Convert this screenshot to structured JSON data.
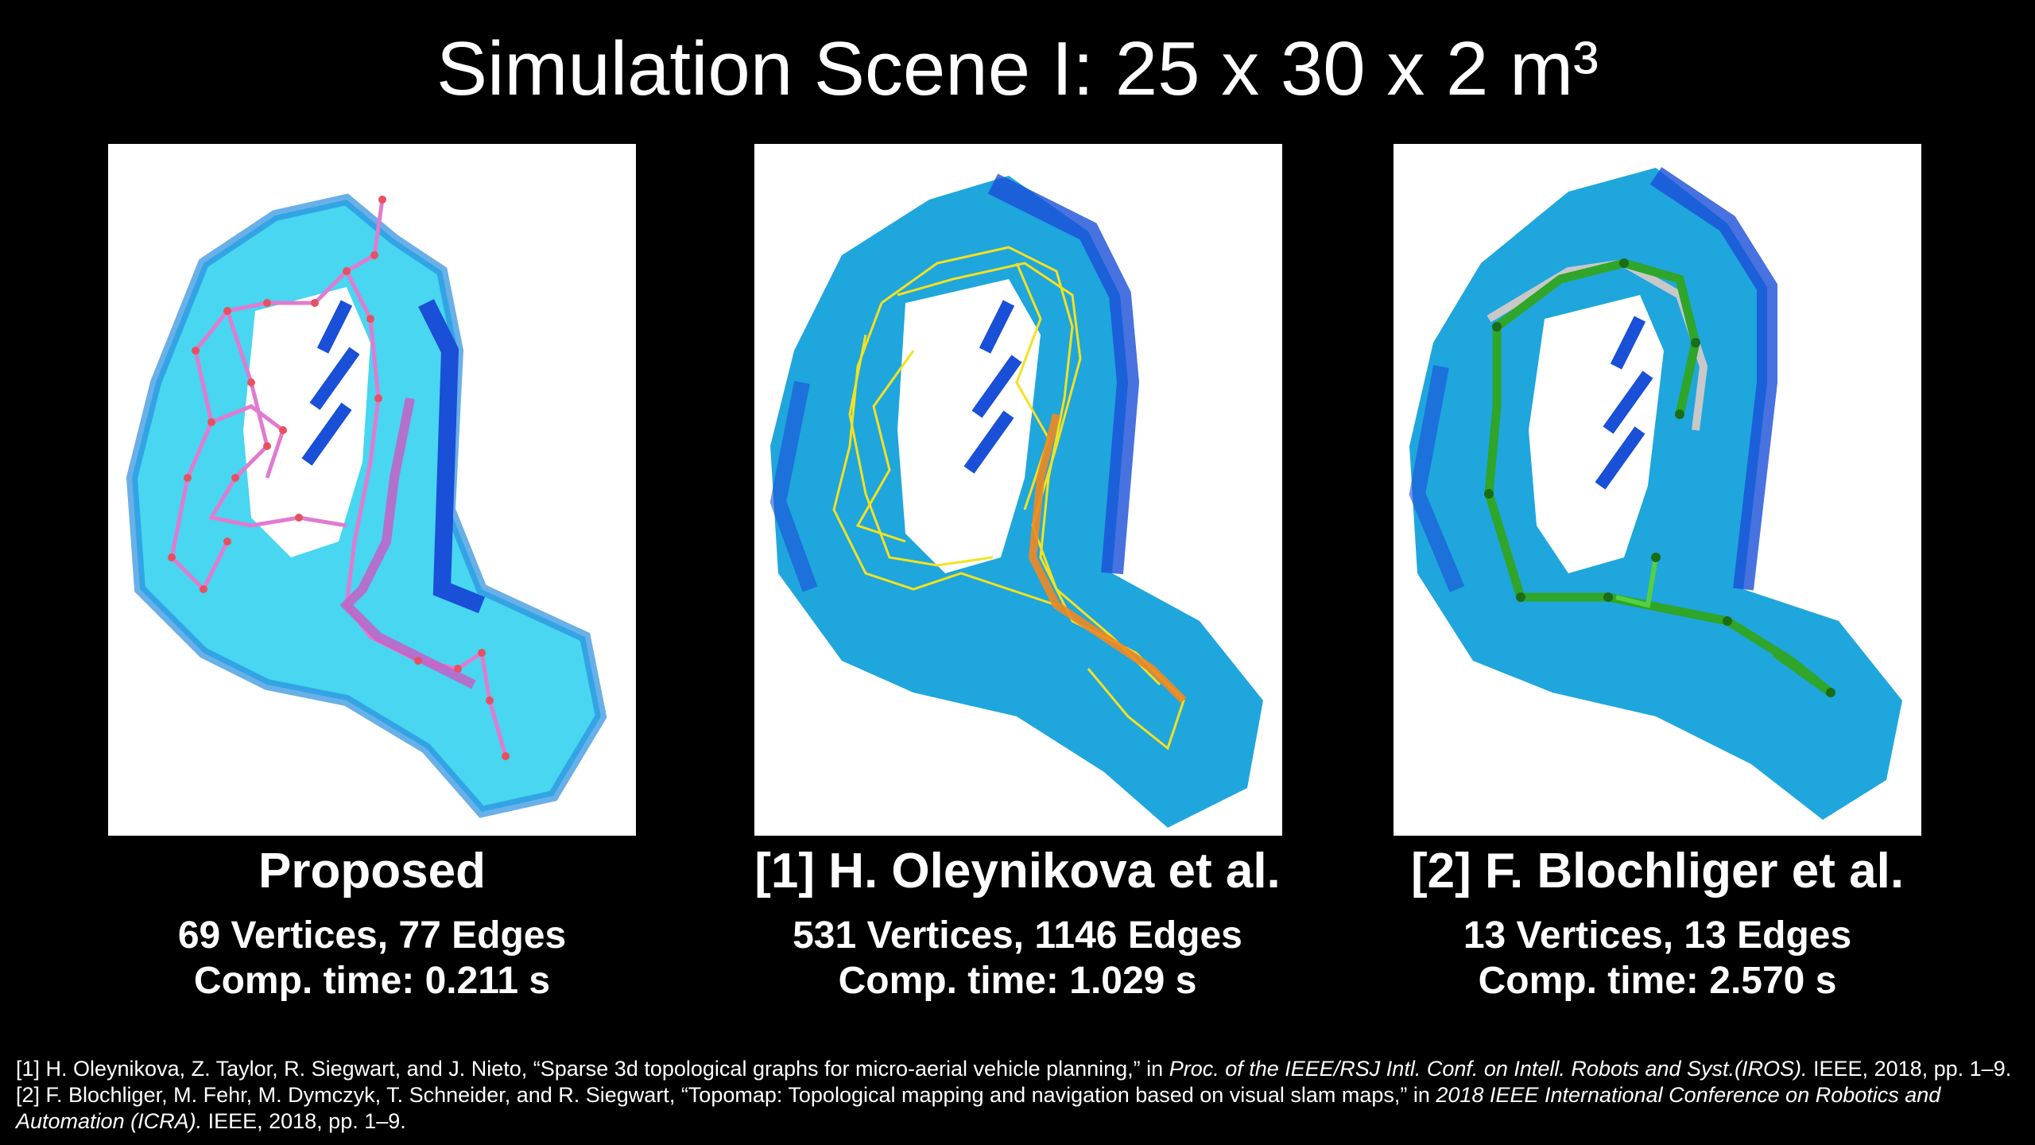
{
  "slide": {
    "title": "Simulation Scene I: 25 x 30 x 2 m³"
  },
  "panels": [
    {
      "method": "Proposed",
      "stat_line1": "69 Vertices, 77 Edges",
      "stat_line2": "Comp. time: 0.211 s",
      "graph_color": "#e07bd0"
    },
    {
      "method": "[1] H. Oleynikova et al.",
      "stat_line1": "531 Vertices, 1146 Edges",
      "stat_line2": "Comp. time: 1.029 s",
      "graph_color": "#f5e11f"
    },
    {
      "method": "[2] F. Blochliger et al.",
      "stat_line1": "13 Vertices, 13 Edges",
      "stat_line2": "Comp. time: 2.570 s",
      "graph_color": "#2fa52a"
    }
  ],
  "colors": {
    "background": "#000000",
    "map_light": "#48d6f0",
    "map_mid": "#1fa6dd",
    "map_dark": "#1a4fd8"
  },
  "references": {
    "ref1_plain": "[1] H. Oleynikova, Z. Taylor, R. Siegwart, and J. Nieto, “Sparse 3d topological graphs for micro-aerial vehicle planning,” in ",
    "ref1_italic": "Proc. of the IEEE/RSJ Intl. Conf. on Intell. Robots and Syst.(IROS).",
    "ref1_tail": " IEEE, 2018, pp. 1–9.",
    "ref2_plain": "[2] F. Blochliger, M. Fehr, M. Dymczyk, T. Schneider, and R. Siegwart, “Topomap: Topological mapping and navigation based on visual slam maps,” in ",
    "ref2_italic": "2018 IEEE International Conference on Robotics and Automation (ICRA).",
    "ref2_tail": " IEEE, 2018, pp. 1–9."
  }
}
